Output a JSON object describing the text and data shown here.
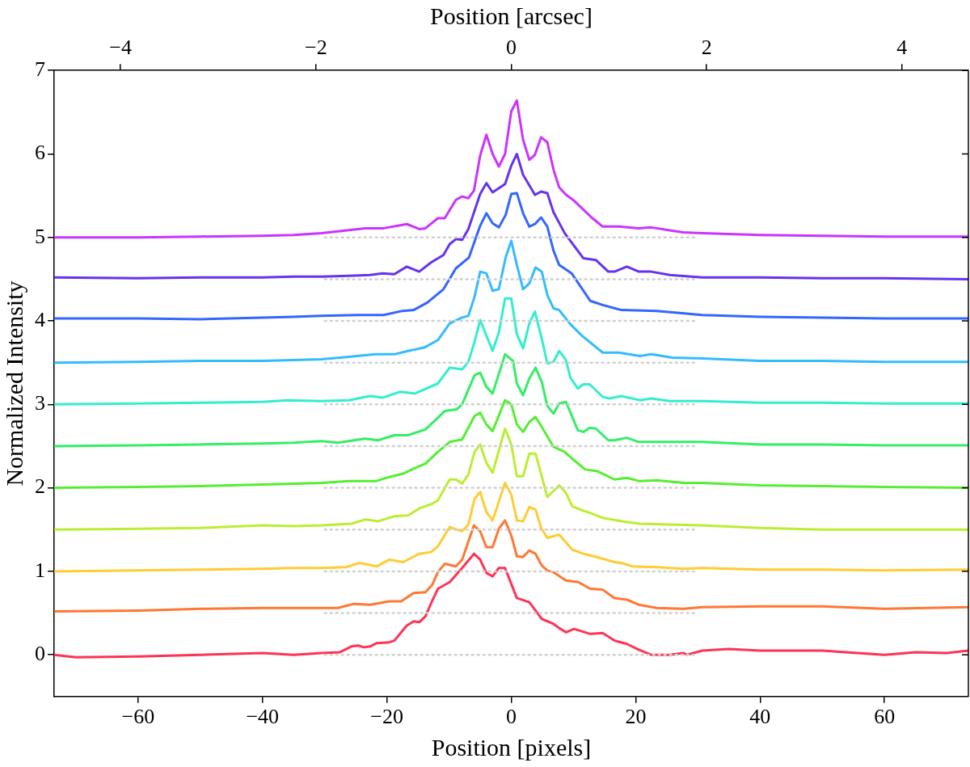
{
  "chart_data": {
    "type": "line",
    "xlabel": "Position [pixels]",
    "x2label": "Position [arcsec]",
    "ylabel": "Normalized Intensity",
    "xlim": [
      -73.5,
      73.5
    ],
    "xticks": [
      {
        "value": -60,
        "label": "−60"
      },
      {
        "value": -40,
        "label": "−40"
      },
      {
        "value": -20,
        "label": "−20"
      },
      0,
      20,
      40,
      60
    ],
    "x2lim": [
      -4.68,
      4.68
    ],
    "x2ticks": [
      {
        "value": -4,
        "label": "−4"
      },
      {
        "value": -2,
        "label": "−2"
      },
      0,
      2,
      4
    ],
    "ylim": [
      -0.5,
      7
    ],
    "yticks": [
      0,
      1,
      2,
      3,
      4,
      5,
      6,
      7
    ],
    "marker": "none",
    "line_style": "solid",
    "legend": false,
    "series": [
      {
        "type": "line",
        "color": "#d0d0d0",
        "line_style": "dotted",
        "x": [
          -30,
          30
        ],
        "values": [
          0,
          0
        ]
      },
      {
        "type": "line",
        "color": "#d0d0d0",
        "line_style": "dotted",
        "x": [
          -30,
          30
        ],
        "values": [
          0.5,
          0.5
        ]
      },
      {
        "type": "line",
        "color": "#d0d0d0",
        "line_style": "dotted",
        "x": [
          -30,
          30
        ],
        "values": [
          1,
          1
        ]
      },
      {
        "type": "line",
        "color": "#d0d0d0",
        "line_style": "dotted",
        "x": [
          -30,
          30
        ],
        "values": [
          1.5,
          1.5
        ]
      },
      {
        "type": "line",
        "color": "#d0d0d0",
        "line_style": "dotted",
        "x": [
          -30,
          30
        ],
        "values": [
          2,
          2
        ]
      },
      {
        "type": "line",
        "color": "#d0d0d0",
        "line_style": "dotted",
        "x": [
          -30,
          30
        ],
        "values": [
          2.5,
          2.5
        ]
      },
      {
        "type": "line",
        "color": "#d0d0d0",
        "line_style": "dotted",
        "x": [
          -30,
          30
        ],
        "values": [
          3,
          3
        ]
      },
      {
        "type": "line",
        "color": "#d0d0d0",
        "line_style": "dotted",
        "x": [
          -30,
          30
        ],
        "values": [
          3.5,
          3.5
        ]
      },
      {
        "type": "line",
        "color": "#d0d0d0",
        "line_style": "dotted",
        "x": [
          -30,
          30
        ],
        "values": [
          4,
          4
        ]
      },
      {
        "type": "line",
        "color": "#d0d0d0",
        "line_style": "dotted",
        "x": [
          -30,
          30
        ],
        "values": [
          4.5,
          4.5
        ]
      },
      {
        "type": "line",
        "color": "#d0d0d0",
        "line_style": "dotted",
        "x": [
          -30,
          30
        ],
        "values": [
          5,
          5
        ]
      },
      {
        "color": "#ff3355",
        "x": [
          -73.5,
          -70,
          -60,
          -50,
          -40,
          -35,
          -30.5,
          -27.6,
          -25.7,
          -24.6,
          -23.7,
          -22.7,
          -21.6,
          -19.6,
          -18.8,
          -16.8,
          -15.7,
          -14.8,
          -13.8,
          -12.7,
          -11.8,
          -9.9,
          -7.9,
          -6,
          -5,
          -4,
          -3,
          -2,
          -1,
          0,
          0.9,
          2.9,
          3.8,
          4.9,
          6.8,
          7.7,
          8.8,
          10.1,
          12.7,
          14.7,
          16.6,
          18.6,
          20.5,
          22.5,
          25.5,
          27.7,
          28.3,
          30.7,
          35,
          40,
          50,
          60,
          65,
          70,
          73.5
        ],
        "values": [
          0,
          -0.03,
          -0.02,
          0,
          0.02,
          0,
          0.02,
          0.03,
          0.1,
          0.11,
          0.09,
          0.1,
          0.14,
          0.15,
          0.17,
          0.35,
          0.4,
          0.39,
          0.46,
          0.65,
          0.79,
          0.87,
          1.04,
          1.21,
          1.14,
          0.98,
          0.94,
          1.04,
          1.04,
          0.85,
          0.68,
          0.63,
          0.54,
          0.43,
          0.37,
          0.32,
          0.27,
          0.31,
          0.25,
          0.26,
          0.17,
          0.13,
          0.06,
          0,
          0,
          0.02,
          0,
          0.05,
          0.07,
          0.05,
          0.05,
          0,
          0.03,
          0.02,
          0.05
        ]
      },
      {
        "color": "#ff7733",
        "x": [
          -73.5,
          -60,
          -50,
          -40,
          -35,
          -30.5,
          -27.9,
          -25.3,
          -22.7,
          -19.6,
          -17.7,
          -15.7,
          -13.8,
          -12.7,
          -11.8,
          -10.7,
          -8.9,
          -7.9,
          -6,
          -5,
          -4,
          -3,
          -2,
          -1,
          0,
          0.9,
          1.9,
          2.9,
          3.9,
          4.9,
          5.8,
          6.8,
          8.8,
          10.8,
          12.7,
          14.7,
          16.6,
          18.6,
          20.5,
          23.4,
          27.7,
          30.7,
          40,
          50,
          60,
          73.5
        ],
        "values": [
          0.52,
          0.53,
          0.55,
          0.56,
          0.56,
          0.56,
          0.56,
          0.61,
          0.6,
          0.64,
          0.64,
          0.74,
          0.75,
          0.84,
          0.99,
          1.09,
          1.06,
          1.14,
          1.55,
          1.48,
          1.29,
          1.29,
          1.51,
          1.61,
          1.43,
          1.18,
          1.17,
          1.25,
          1.21,
          1.07,
          1.01,
          0.99,
          0.89,
          0.87,
          0.79,
          0.78,
          0.68,
          0.66,
          0.6,
          0.56,
          0.55,
          0.57,
          0.58,
          0.58,
          0.55,
          0.57
        ]
      },
      {
        "color": "#ffcc33",
        "x": [
          -73.5,
          -60,
          -50,
          -40,
          -35,
          -30.5,
          -26.6,
          -24.4,
          -21.6,
          -19.6,
          -17.4,
          -14.8,
          -12.9,
          -11.8,
          -9.9,
          -7.9,
          -6.9,
          -5.9,
          -5,
          -4,
          -3,
          -1,
          0,
          0.9,
          1.9,
          2.9,
          3.9,
          4.8,
          5.8,
          7.7,
          9.8,
          11.6,
          13.8,
          16.6,
          17.7,
          19.4,
          23.4,
          27.7,
          30.7,
          40,
          50,
          60,
          73.5
        ],
        "values": [
          1,
          1.01,
          1.02,
          1.03,
          1.04,
          1.04,
          1.05,
          1.1,
          1.06,
          1.14,
          1.11,
          1.21,
          1.23,
          1.3,
          1.53,
          1.48,
          1.56,
          1.87,
          1.95,
          1.71,
          1.61,
          2.06,
          1.92,
          1.61,
          1.6,
          1.77,
          1.74,
          1.52,
          1.4,
          1.44,
          1.26,
          1.21,
          1.17,
          1.11,
          1.1,
          1.06,
          1.05,
          1.03,
          1.04,
          1.02,
          1.02,
          1.01,
          1.02
        ]
      },
      {
        "color": "#bbee33",
        "x": [
          -73.5,
          -60,
          -50,
          -40,
          -35,
          -30.5,
          -25.7,
          -23.5,
          -21.4,
          -18.8,
          -16.6,
          -14.6,
          -12.7,
          -11.8,
          -9.9,
          -8.9,
          -7.9,
          -6.9,
          -5.9,
          -5,
          -4,
          -3,
          -1,
          0,
          0.9,
          1.9,
          2.9,
          3.9,
          5.8,
          7.7,
          8.8,
          9.8,
          11.4,
          12.7,
          14.7,
          18.6,
          20.7,
          25.5,
          30.7,
          40,
          50,
          60,
          73.5
        ],
        "values": [
          1.5,
          1.51,
          1.52,
          1.55,
          1.54,
          1.55,
          1.57,
          1.62,
          1.6,
          1.66,
          1.67,
          1.76,
          1.81,
          1.85,
          2.1,
          2.1,
          2.05,
          2.16,
          2.43,
          2.52,
          2.3,
          2.18,
          2.71,
          2.52,
          2.14,
          2.14,
          2.41,
          2.41,
          1.89,
          2.03,
          1.94,
          1.78,
          1.73,
          1.7,
          1.64,
          1.59,
          1.57,
          1.56,
          1.55,
          1.52,
          1.5,
          1.5,
          1.5
        ]
      },
      {
        "color": "#55ee33",
        "x": [
          -73.5,
          -60,
          -50,
          -40,
          -35,
          -30.5,
          -26.1,
          -21.8,
          -19.6,
          -17.4,
          -15.7,
          -13.8,
          -11.8,
          -9.9,
          -7.9,
          -5.9,
          -5,
          -4,
          -3,
          -1,
          0,
          0.9,
          1.9,
          2.9,
          3.9,
          4.9,
          6.8,
          8.6,
          10.1,
          11.9,
          13.8,
          16.6,
          18.6,
          20.7,
          23.4,
          27.7,
          30.7,
          40,
          50,
          60,
          73.5
        ],
        "values": [
          2,
          2.01,
          2.02,
          2.04,
          2.05,
          2.06,
          2.08,
          2.08,
          2.13,
          2.17,
          2.23,
          2.29,
          2.43,
          2.55,
          2.58,
          2.86,
          2.9,
          2.76,
          2.68,
          3.05,
          3,
          2.76,
          2.67,
          2.79,
          2.85,
          2.73,
          2.49,
          2.43,
          2.33,
          2.22,
          2.2,
          2.1,
          2.12,
          2.08,
          2.09,
          2.06,
          2.06,
          2.03,
          2.02,
          2.01,
          2
        ]
      },
      {
        "color": "#33ee66",
        "x": [
          -73.5,
          -60,
          -50,
          -40,
          -35,
          -30.5,
          -27.9,
          -23.5,
          -21.4,
          -18.8,
          -16.6,
          -13.8,
          -11.8,
          -10.7,
          -8.8,
          -7.9,
          -5.9,
          -5,
          -4,
          -3,
          -1,
          0.3,
          0.9,
          1.9,
          2.9,
          3.9,
          4.9,
          5.8,
          6.8,
          7.7,
          8.8,
          10.7,
          11.6,
          12.6,
          13.6,
          15.6,
          16.6,
          18.6,
          20.5,
          25.5,
          30.7,
          40,
          50,
          60,
          73.5
        ],
        "values": [
          2.5,
          2.51,
          2.52,
          2.53,
          2.54,
          2.56,
          2.54,
          2.59,
          2.57,
          2.63,
          2.63,
          2.7,
          2.84,
          2.92,
          2.94,
          3,
          3.35,
          3.38,
          3.21,
          3.13,
          3.6,
          3.52,
          3.25,
          3.11,
          3.31,
          3.44,
          3.27,
          2.98,
          2.89,
          3.01,
          3.03,
          2.69,
          2.67,
          2.72,
          2.71,
          2.57,
          2.57,
          2.6,
          2.55,
          2.55,
          2.55,
          2.52,
          2.52,
          2.51,
          2.51
        ]
      },
      {
        "color": "#33eecc",
        "x": [
          -73.5,
          -60,
          -50,
          -40,
          -36,
          -30.5,
          -26.1,
          -22.7,
          -20.7,
          -17.9,
          -15.5,
          -11.8,
          -9.9,
          -7.9,
          -6.9,
          -5.9,
          -5,
          -3,
          -2,
          -1,
          0,
          0.9,
          1.9,
          2.9,
          3.8,
          4.8,
          5.8,
          6.8,
          7.7,
          8.8,
          9.5,
          10.7,
          11.6,
          12.6,
          14.7,
          15.8,
          17.7,
          20.7,
          22.5,
          25.5,
          30.7,
          40,
          50,
          60,
          73.5
        ],
        "values": [
          3,
          3.01,
          3.02,
          3.03,
          3.05,
          3.04,
          3.05,
          3.1,
          3.08,
          3.15,
          3.13,
          3.25,
          3.44,
          3.42,
          3.51,
          3.75,
          4.01,
          3.64,
          3.86,
          4.27,
          4.27,
          3.84,
          3.67,
          3.97,
          4.11,
          3.82,
          3.49,
          3.51,
          3.64,
          3.53,
          3.32,
          3.19,
          3.24,
          3.24,
          3.09,
          3.07,
          3.1,
          3.05,
          3.07,
          3.04,
          3.04,
          3.02,
          3.02,
          3.01,
          3.01
        ]
      },
      {
        "color": "#33bbff",
        "x": [
          -73.5,
          -60,
          -50,
          -40,
          -35,
          -30.5,
          -26.1,
          -21.8,
          -18.8,
          -16.6,
          -14,
          -11.8,
          -9.9,
          -7.9,
          -6.9,
          -5.9,
          -5,
          -4,
          -3,
          -2,
          -0.9,
          0,
          0.9,
          1.9,
          2.9,
          3.9,
          4.9,
          5.8,
          6.8,
          7.7,
          9.5,
          11.4,
          14.7,
          17.3,
          20.7,
          22.5,
          25.9,
          30.7,
          40,
          50,
          60,
          73.5
        ],
        "values": [
          3.5,
          3.51,
          3.52,
          3.52,
          3.53,
          3.54,
          3.57,
          3.6,
          3.6,
          3.64,
          3.68,
          3.77,
          3.97,
          4.04,
          4.06,
          4.29,
          4.59,
          4.57,
          4.36,
          4.38,
          4.76,
          4.96,
          4.67,
          4.38,
          4.45,
          4.64,
          4.59,
          4.31,
          4.15,
          4.13,
          3.96,
          3.82,
          3.62,
          3.62,
          3.58,
          3.6,
          3.56,
          3.55,
          3.52,
          3.52,
          3.51,
          3.51
        ]
      },
      {
        "color": "#3366ff",
        "x": [
          -73.5,
          -60,
          -50,
          -40,
          -35,
          -30.5,
          -24.8,
          -20.5,
          -17.5,
          -15.7,
          -13.5,
          -10.9,
          -8.9,
          -6.8,
          -5,
          -4,
          -3,
          -2,
          -0.9,
          0,
          0.9,
          1.9,
          2.9,
          3.8,
          4.8,
          5.8,
          6.8,
          7.7,
          9.7,
          12.7,
          14.7,
          17.7,
          23.4,
          30.7,
          40,
          50,
          60,
          73.5
        ],
        "values": [
          4.03,
          4.03,
          4.02,
          4.04,
          4.05,
          4.06,
          4.07,
          4.07,
          4.12,
          4.13,
          4.22,
          4.38,
          4.63,
          4.76,
          5.14,
          5.29,
          5.17,
          5.12,
          5.27,
          5.52,
          5.53,
          5.29,
          5.13,
          5.16,
          5.24,
          5.13,
          4.84,
          4.67,
          4.57,
          4.24,
          4.19,
          4.13,
          4.12,
          4.07,
          4.05,
          4.04,
          4.03,
          4.03
        ]
      },
      {
        "color": "#6633ee",
        "x": [
          -73.5,
          -60,
          -50,
          -40,
          -35,
          -30.5,
          -26.1,
          -22.7,
          -20.7,
          -18.8,
          -16.8,
          -14.8,
          -12.9,
          -10.9,
          -9.9,
          -8.9,
          -7.9,
          -6.9,
          -5,
          -4,
          -3,
          -1,
          0,
          0.9,
          1.9,
          3.8,
          4.8,
          5.8,
          6.8,
          8.6,
          11.6,
          13.6,
          15.6,
          16.6,
          18.6,
          20.5,
          22.5,
          25.5,
          30.7,
          40,
          50,
          60,
          73.5
        ],
        "values": [
          4.52,
          4.51,
          4.52,
          4.52,
          4.53,
          4.53,
          4.54,
          4.55,
          4.57,
          4.56,
          4.65,
          4.59,
          4.7,
          4.79,
          4.92,
          4.98,
          4.97,
          5.1,
          5.52,
          5.65,
          5.54,
          5.64,
          5.86,
          6,
          5.75,
          5.51,
          5.55,
          5.53,
          5.3,
          5.05,
          4.75,
          4.73,
          4.59,
          4.59,
          4.65,
          4.59,
          4.59,
          4.55,
          4.52,
          4.52,
          4.51,
          4.51,
          4.5
        ]
      },
      {
        "color": "#cc33ff",
        "x": [
          -73.5,
          -60,
          -50,
          -40,
          -35,
          -30.5,
          -23.5,
          -20.5,
          -16.8,
          -14.8,
          -13.8,
          -11.8,
          -10.7,
          -8.9,
          -7.9,
          -6.9,
          -6,
          -5,
          -4,
          -3,
          -2,
          -1,
          0,
          0.9,
          1.9,
          2.9,
          3.8,
          4.8,
          5.8,
          6.8,
          7.7,
          8.8,
          10.1,
          12.9,
          14.7,
          17.3,
          20.5,
          22.5,
          25.9,
          27.7,
          30.7,
          40,
          50,
          60,
          73.5
        ],
        "values": [
          5,
          5,
          5.01,
          5.02,
          5.03,
          5.05,
          5.11,
          5.11,
          5.16,
          5.1,
          5.11,
          5.23,
          5.23,
          5.45,
          5.49,
          5.47,
          5.56,
          5.98,
          6.23,
          6,
          5.85,
          6,
          6.51,
          6.64,
          6.17,
          5.93,
          5.99,
          6.2,
          6.14,
          5.81,
          5.6,
          5.51,
          5.44,
          5.24,
          5.13,
          5.13,
          5.11,
          5.12,
          5.08,
          5.06,
          5.05,
          5.03,
          5.02,
          5.01,
          5.01
        ]
      }
    ]
  }
}
